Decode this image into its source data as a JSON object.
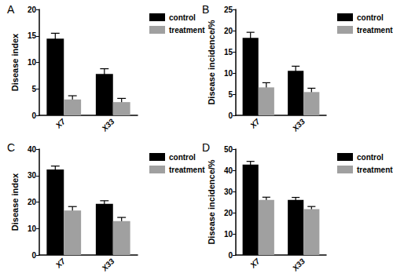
{
  "chart_data": [
    {
      "type": "bar",
      "title": "A",
      "ylabel": "Disease index",
      "categories": [
        "X7",
        "X33"
      ],
      "series": [
        {
          "name": "control",
          "color": "#000000",
          "values": [
            14.5,
            7.8
          ],
          "errors": [
            1.0,
            1.0
          ]
        },
        {
          "name": "treatment",
          "color": "#a0a0a0",
          "values": [
            3.0,
            2.5
          ],
          "errors": [
            0.7,
            0.7
          ]
        }
      ],
      "ylim": [
        0,
        20
      ],
      "yticks": [
        0,
        5,
        10,
        15,
        20
      ],
      "grid": false,
      "legend": "upper right"
    },
    {
      "type": "bar",
      "title": "B",
      "ylabel": "Disease incidence/%",
      "categories": [
        "X7",
        "X33"
      ],
      "series": [
        {
          "name": "control",
          "color": "#000000",
          "values": [
            18.3,
            10.5
          ],
          "errors": [
            1.3,
            1.1
          ]
        },
        {
          "name": "treatment",
          "color": "#a0a0a0",
          "values": [
            6.6,
            5.5
          ],
          "errors": [
            1.1,
            0.9
          ]
        }
      ],
      "ylim": [
        0,
        25
      ],
      "yticks": [
        0,
        5,
        10,
        15,
        20,
        25
      ],
      "grid": false,
      "legend": "upper right"
    },
    {
      "type": "bar",
      "title": "C",
      "ylabel": "Disease index",
      "categories": [
        "X7",
        "X33"
      ],
      "series": [
        {
          "name": "control",
          "color": "#000000",
          "values": [
            32.3,
            19.3
          ],
          "errors": [
            1.3,
            1.2
          ]
        },
        {
          "name": "treatment",
          "color": "#a0a0a0",
          "values": [
            16.8,
            12.8
          ],
          "errors": [
            1.5,
            1.4
          ]
        }
      ],
      "ylim": [
        0,
        40
      ],
      "yticks": [
        0,
        10,
        20,
        30,
        40
      ],
      "grid": false,
      "legend": "upper right"
    },
    {
      "type": "bar",
      "title": "D",
      "ylabel": "Disease incidence/%",
      "categories": [
        "X7",
        "X33"
      ],
      "series": [
        {
          "name": "control",
          "color": "#000000",
          "values": [
            42.7,
            26.0
          ],
          "errors": [
            1.5,
            1.2
          ]
        },
        {
          "name": "treatment",
          "color": "#a0a0a0",
          "values": [
            26.0,
            21.7
          ],
          "errors": [
            1.3,
            1.2
          ]
        }
      ],
      "ylim": [
        0,
        50
      ],
      "yticks": [
        0,
        10,
        20,
        30,
        40,
        50
      ],
      "grid": false,
      "legend": "upper right"
    }
  ]
}
